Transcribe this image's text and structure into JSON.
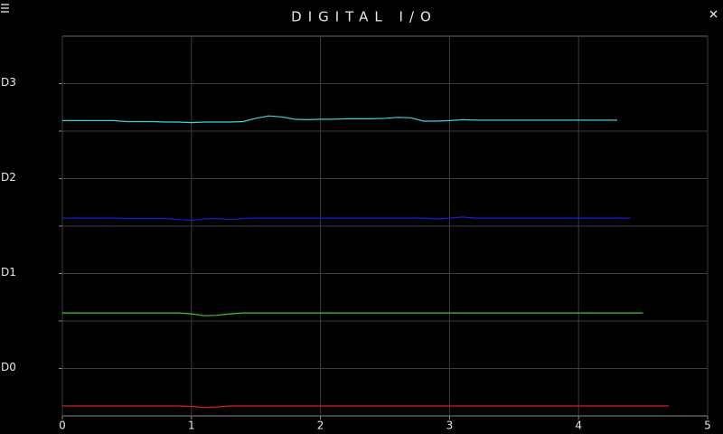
{
  "chart_data": {
    "type": "line",
    "title": "DIGITAL I/O",
    "x": [
      0,
      0.1,
      0.2,
      0.3,
      0.4,
      0.5,
      0.6,
      0.7,
      0.8,
      0.9,
      1,
      1.1,
      1.2,
      1.3,
      1.4,
      1.5,
      1.6,
      1.7,
      1.8,
      1.9,
      2,
      2.1,
      2.2,
      2.3,
      2.4,
      2.5,
      2.6,
      2.7,
      2.8,
      2.9,
      3,
      3.1,
      3.2,
      3.3,
      3.4,
      3.5,
      3.6,
      3.7,
      3.8,
      3.9,
      4,
      4.1,
      4.2,
      4.3,
      4.4,
      4.5,
      4.6,
      4.7
    ],
    "series": [
      {
        "color": "#3fd3df",
        "values": [
          6.22,
          6.22,
          6.22,
          6.22,
          6.22,
          6.2,
          6.2,
          6.2,
          6.19,
          6.19,
          6.18,
          6.19,
          6.19,
          6.19,
          6.2,
          6.27,
          6.32,
          6.3,
          6.25,
          6.24,
          6.25,
          6.25,
          6.26,
          6.26,
          6.26,
          6.27,
          6.29,
          6.28,
          6.21,
          6.21,
          6.22,
          6.24,
          6.23,
          6.23,
          6.23,
          6.23,
          6.23,
          6.23,
          6.23,
          6.23,
          6.23,
          6.23,
          6.23,
          6.23,
          null,
          null,
          null,
          null
        ]
      },
      {
        "color": "#1c1cd4",
        "values": [
          4.17,
          4.17,
          4.17,
          4.17,
          4.17,
          4.16,
          4.16,
          4.16,
          4.16,
          4.14,
          4.12,
          4.15,
          4.16,
          4.14,
          4.16,
          4.17,
          4.17,
          4.17,
          4.17,
          4.17,
          4.17,
          4.17,
          4.17,
          4.17,
          4.17,
          4.17,
          4.17,
          4.17,
          4.17,
          4.15,
          4.17,
          4.19,
          4.17,
          4.17,
          4.17,
          4.17,
          4.17,
          4.17,
          4.17,
          4.17,
          4.17,
          4.17,
          4.17,
          4.17,
          4.17,
          null,
          null,
          null
        ]
      },
      {
        "color": "#3cc83c",
        "values": [
          2.17,
          2.17,
          2.17,
          2.17,
          2.17,
          2.17,
          2.17,
          2.17,
          2.17,
          2.17,
          2.15,
          2.11,
          2.12,
          2.15,
          2.17,
          2.17,
          2.17,
          2.17,
          2.17,
          2.17,
          2.17,
          2.17,
          2.17,
          2.17,
          2.17,
          2.17,
          2.17,
          2.17,
          2.17,
          2.17,
          2.17,
          2.17,
          2.17,
          2.17,
          2.17,
          2.17,
          2.17,
          2.17,
          2.17,
          2.17,
          2.17,
          2.17,
          2.17,
          2.17,
          2.17,
          2.17,
          null,
          null
        ]
      },
      {
        "color": "#d42020",
        "values": [
          0.21,
          0.21,
          0.21,
          0.21,
          0.21,
          0.21,
          0.21,
          0.21,
          0.21,
          0.21,
          0.2,
          0.18,
          0.19,
          0.21,
          0.21,
          0.21,
          0.21,
          0.21,
          0.21,
          0.21,
          0.21,
          0.21,
          0.21,
          0.21,
          0.21,
          0.21,
          0.21,
          0.21,
          0.21,
          0.21,
          0.21,
          0.21,
          0.21,
          0.21,
          0.21,
          0.21,
          0.21,
          0.21,
          0.21,
          0.21,
          0.21,
          0.21,
          0.21,
          0.21,
          0.21,
          0.21,
          0.21,
          0.21
        ]
      }
    ],
    "xlim": [
      0,
      5
    ],
    "xticks": [
      0,
      1,
      2,
      3,
      4,
      5
    ],
    "ylim": [
      0,
      8
    ],
    "yticks": [
      {
        "value": 1,
        "label": "D0"
      },
      {
        "value": 3,
        "label": "D1"
      },
      {
        "value": 5,
        "label": "D2"
      },
      {
        "value": 7,
        "label": "D3"
      }
    ],
    "ygrid": [
      1,
      2,
      3,
      4,
      5,
      6,
      7
    ],
    "grid": true
  }
}
